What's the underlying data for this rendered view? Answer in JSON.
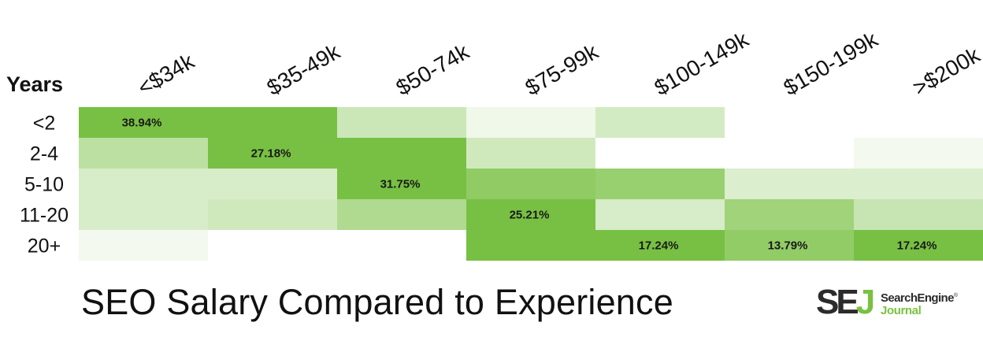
{
  "chart_data": {
    "type": "heatmap",
    "title": "SEO Salary Compared to Experience",
    "row_axis_label": "Years",
    "columns": [
      "<$34k",
      "$35-49k",
      "$50-74k",
      "$75-99k",
      "$100-149k",
      "$150-199k",
      ">$200k"
    ],
    "rows": [
      "<2",
      "2-4",
      "5-10",
      "11-20",
      "20+"
    ],
    "values": [
      [
        38.94,
        18.0,
        6.5,
        2.0,
        5.5,
        0.0,
        0.0
      ],
      [
        8.5,
        27.18,
        20.0,
        6.0,
        0.0,
        0.0,
        1.5
      ],
      [
        5.0,
        5.0,
        31.75,
        14.0,
        13.0,
        4.5,
        4.5
      ],
      [
        5.0,
        6.0,
        10.0,
        25.21,
        5.0,
        12.0,
        7.0
      ],
      [
        1.5,
        0.0,
        0.0,
        19.0,
        17.24,
        13.79,
        17.24
      ]
    ],
    "labeled_cells": [
      {
        "row": 0,
        "col": 0,
        "label": "38.94%"
      },
      {
        "row": 1,
        "col": 1,
        "label": "27.18%"
      },
      {
        "row": 2,
        "col": 2,
        "label": "31.75%"
      },
      {
        "row": 3,
        "col": 3,
        "label": "25.21%"
      },
      {
        "row": 4,
        "col": 4,
        "label": "17.24%"
      },
      {
        "row": 4,
        "col": 5,
        "label": "13.79%"
      },
      {
        "row": 4,
        "col": 6,
        "label": "17.24%"
      }
    ],
    "color_low": "#ffffff",
    "color_high": "#78c043",
    "value_max": 17.0,
    "grid": false,
    "legend": "none"
  },
  "logo": {
    "mark_se": "SE",
    "mark_j": "J",
    "line1": "SearchEngine",
    "registered": "®",
    "line2": "Journal",
    "color_dark": "#2b2b2b",
    "color_green": "#7ac143"
  }
}
